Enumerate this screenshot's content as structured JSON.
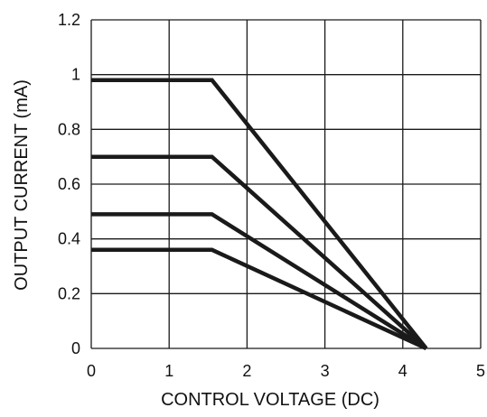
{
  "chart_data": {
    "type": "line",
    "title": "",
    "xlabel": "CONTROL VOLTAGE (DC)",
    "ylabel": "OUTPUT CURRENT (mA)",
    "xlim": [
      0,
      5
    ],
    "ylim": [
      0,
      1.2
    ],
    "x_ticks": [
      "0",
      "1",
      "2",
      "3",
      "4",
      "5"
    ],
    "y_ticks": [
      "0",
      "0.2",
      "0.4",
      "0.6",
      "0.8",
      "1",
      "1.2"
    ],
    "grid": true,
    "legend": "none",
    "series": [
      {
        "x": [
          0,
          1.55,
          4.3
        ],
        "y": [
          0.98,
          0.98,
          0
        ]
      },
      {
        "x": [
          0,
          1.55,
          4.3
        ],
        "y": [
          0.7,
          0.7,
          0
        ]
      },
      {
        "x": [
          0,
          1.55,
          4.3
        ],
        "y": [
          0.49,
          0.49,
          0
        ]
      },
      {
        "x": [
          0,
          1.55,
          4.3
        ],
        "y": [
          0.36,
          0.36,
          0
        ]
      }
    ],
    "colors": {
      "line": "#1a1a1a",
      "grid": "#1a1a1a",
      "text": "#111111",
      "background": "#ffffff"
    }
  }
}
